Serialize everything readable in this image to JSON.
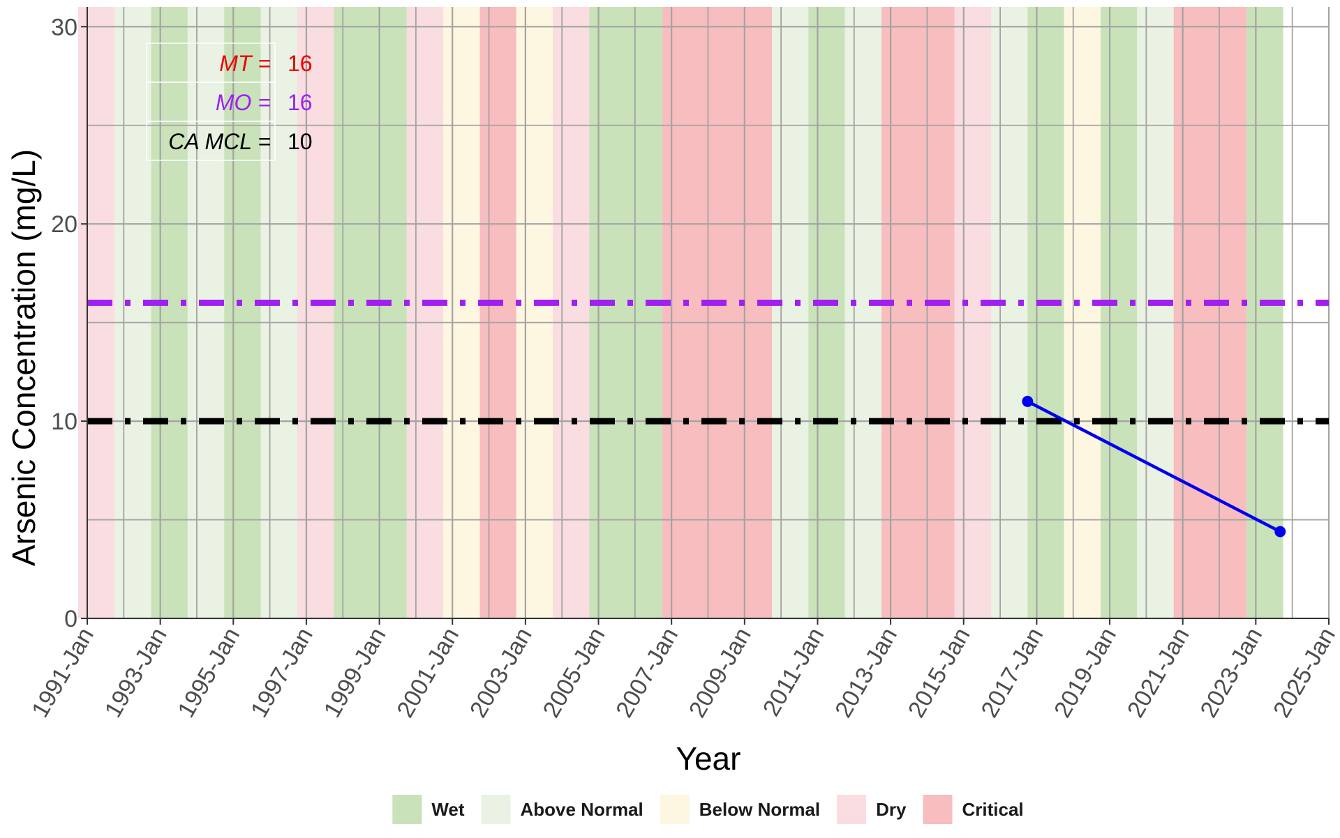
{
  "chart_data": {
    "type": "line",
    "xlabel": "Year",
    "ylabel": "Arsenic Concentration (mg/L)",
    "x_ticks": [
      "1991-Jan",
      "1993-Jan",
      "1995-Jan",
      "1997-Jan",
      "1999-Jan",
      "2001-Jan",
      "2003-Jan",
      "2005-Jan",
      "2007-Jan",
      "2009-Jan",
      "2011-Jan",
      "2013-Jan",
      "2015-Jan",
      "2017-Jan",
      "2019-Jan",
      "2021-Jan",
      "2023-Jan",
      "2025-Jan"
    ],
    "y_ticks": [
      0,
      10,
      20,
      30
    ],
    "ylim": [
      0,
      31
    ],
    "xlim": [
      1991.0,
      2025.0
    ],
    "grid": true,
    "series": [
      {
        "x": [
          "2016-Oct",
          "2023-Sep"
        ],
        "y": [
          11.0,
          4.4
        ],
        "color": "#0000ee"
      }
    ],
    "reference_lines": [
      {
        "name": "MT",
        "value": 16,
        "color": "#a020f0",
        "style": "dash-dot"
      },
      {
        "name": "CA MCL",
        "value": 10,
        "color": "#000000",
        "style": "dash-dot"
      }
    ],
    "annotations": [
      {
        "label": "MT =",
        "value": "16",
        "color": "#ee0000"
      },
      {
        "label": "MO =",
        "value": "16",
        "color": "#a020f0"
      },
      {
        "label": "CA MCL =",
        "value": "10",
        "color": "#000000"
      }
    ],
    "water_year_types": [
      {
        "type": "Dry",
        "start": "1990-Oct",
        "end": "1991-Sep"
      },
      {
        "type": "Above Normal",
        "start": "1991-Oct",
        "end": "1992-Sep"
      },
      {
        "type": "Wet",
        "start": "1992-Oct",
        "end": "1993-Sep"
      },
      {
        "type": "Above Normal",
        "start": "1993-Oct",
        "end": "1994-Sep"
      },
      {
        "type": "Wet",
        "start": "1994-Oct",
        "end": "1995-Sep"
      },
      {
        "type": "Above Normal",
        "start": "1995-Oct",
        "end": "1996-Sep"
      },
      {
        "type": "Dry",
        "start": "1996-Oct",
        "end": "1997-Sep"
      },
      {
        "type": "Wet",
        "start": "1997-Oct",
        "end": "1999-Sep"
      },
      {
        "type": "Dry",
        "start": "1999-Oct",
        "end": "2000-Sep"
      },
      {
        "type": "Below Normal",
        "start": "2000-Oct",
        "end": "2001-Sep"
      },
      {
        "type": "Critical",
        "start": "2001-Oct",
        "end": "2002-Sep"
      },
      {
        "type": "Below Normal",
        "start": "2002-Oct",
        "end": "2003-Sep"
      },
      {
        "type": "Dry",
        "start": "2003-Oct",
        "end": "2004-Sep"
      },
      {
        "type": "Wet",
        "start": "2004-Oct",
        "end": "2006-Sep"
      },
      {
        "type": "Critical",
        "start": "2006-Oct",
        "end": "2009-Sep"
      },
      {
        "type": "Above Normal",
        "start": "2009-Oct",
        "end": "2010-Sep"
      },
      {
        "type": "Wet",
        "start": "2010-Oct",
        "end": "2011-Sep"
      },
      {
        "type": "Above Normal",
        "start": "2011-Oct",
        "end": "2012-Sep"
      },
      {
        "type": "Critical",
        "start": "2012-Oct",
        "end": "2014-Sep"
      },
      {
        "type": "Dry",
        "start": "2014-Oct",
        "end": "2015-Sep"
      },
      {
        "type": "Above Normal",
        "start": "2015-Oct",
        "end": "2016-Sep"
      },
      {
        "type": "Wet",
        "start": "2016-Oct",
        "end": "2017-Sep"
      },
      {
        "type": "Below Normal",
        "start": "2017-Oct",
        "end": "2018-Sep"
      },
      {
        "type": "Wet",
        "start": "2018-Oct",
        "end": "2019-Sep"
      },
      {
        "type": "Above Normal",
        "start": "2019-Oct",
        "end": "2020-Sep"
      },
      {
        "type": "Critical",
        "start": "2020-Oct",
        "end": "2022-Sep"
      },
      {
        "type": "Wet",
        "start": "2022-Oct",
        "end": "2023-Sep"
      }
    ],
    "legend": {
      "position": "bottom",
      "items": [
        {
          "label": "Wet",
          "color": "#c9e2b9"
        },
        {
          "label": "Above Normal",
          "color": "#e9f2e3"
        },
        {
          "label": "Below Normal",
          "color": "#fdf6e0"
        },
        {
          "label": "Dry",
          "color": "#f9dde0"
        },
        {
          "label": "Critical",
          "color": "#f8bdbe"
        }
      ]
    }
  }
}
